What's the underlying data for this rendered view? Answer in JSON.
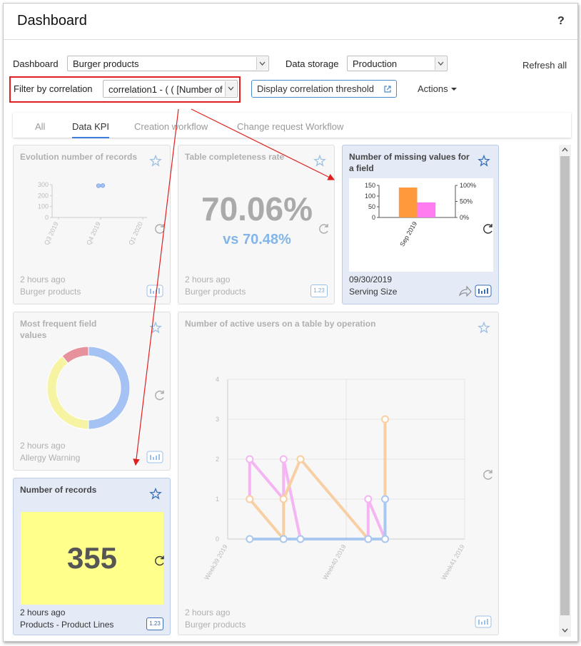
{
  "header": {
    "title": "Dashboard",
    "help": "?"
  },
  "toolbar": {
    "dashboard_label": "Dashboard",
    "dashboard_value": "Burger products",
    "storage_label": "Data storage",
    "storage_value": "Production",
    "refresh": "Refresh all",
    "filter_label": "Filter by correlation",
    "filter_value": "correlation1 - ( ( [Number of",
    "threshold_button": "Display correlation threshold",
    "actions": "Actions"
  },
  "tabs": {
    "items": [
      "All",
      "Data KPI",
      "Creation workflow",
      "Change request Workflow"
    ],
    "active": 1
  },
  "cards": [
    {
      "title": "Evolution number of records",
      "time": "2 hours ago",
      "source": "Burger products",
      "chart_data": {
        "type": "scatter",
        "x": [
          0.95,
          1.05
        ],
        "values": [
          290,
          292
        ],
        "color": "#a4c2f4",
        "xlim": [
          -0.15,
          2.1
        ],
        "xticks": [
          {
            "value": 0,
            "label": "Q3 2019"
          },
          {
            "value": 1,
            "label": "Q4 2019"
          },
          {
            "value": 2,
            "label": "Q1 2020"
          }
        ],
        "ylim": [
          0,
          300
        ],
        "yticks": [
          0,
          100,
          200,
          300
        ],
        "grid": false
      }
    },
    {
      "title": "Table completeness rate",
      "kpi": "70.06%",
      "compare": "vs 70.48%",
      "time": "2 hours ago",
      "source": "Burger products",
      "badge": "1.23"
    },
    {
      "title": "Number of missing values for a field",
      "time": "09/30/2019",
      "source": "Serving Size",
      "chart_data": {
        "type": "bar",
        "categories": [
          "Sep 2019"
        ],
        "series": [
          {
            "color": "#ff9a3c",
            "values": [
              140
            ]
          },
          {
            "color": "#ff7cf0",
            "values": [
              47
            ],
            "axis": "y2"
          }
        ],
        "ylim": [
          0,
          150
        ],
        "yticks": [
          0,
          50,
          100,
          150
        ],
        "y2lim": [
          0,
          100
        ],
        "y2ticks": [
          {
            "value": 0,
            "label": "0%"
          },
          {
            "value": 50,
            "label": "50%"
          },
          {
            "value": 100,
            "label": "100%"
          }
        ]
      }
    },
    {
      "title": "Most frequent field values",
      "time": "2 hours ago",
      "source": "Allergy Warning",
      "chart_data": {
        "type": "pie",
        "donut": true,
        "values": [
          50,
          39,
          11
        ],
        "colors": [
          "#a4c2f4",
          "#f6f3a2",
          "#e6919c"
        ]
      }
    },
    {
      "title": "Number of records",
      "kpi": "355",
      "time": "2 hours ago",
      "source": "Products - Product Lines",
      "badge": "1.23"
    },
    {
      "title": "Number of active users on a table by operation",
      "time": "2 hours ago",
      "source": "Burger products",
      "chart_data": {
        "type": "line",
        "series": [
          {
            "color": "#f4b5f2",
            "x": [
              1.3,
              1.3,
              3.3,
              3.3,
              4.3,
              8.3,
              8.3,
              9.3
            ],
            "values": [
              1,
              2,
              1,
              2,
              0,
              0,
              1,
              0
            ]
          },
          {
            "color": "#f8cfa2",
            "x": [
              1.3,
              3.3,
              3.3,
              4.3,
              8.3,
              9.3,
              9.3
            ],
            "values": [
              1,
              0,
              1,
              2,
              0,
              0,
              3
            ]
          },
          {
            "color": "#a9c8f0",
            "x": [
              1.3,
              3.3,
              4.3,
              8.3,
              9.3,
              9.3
            ],
            "values": [
              0,
              0,
              0,
              0,
              0,
              1
            ]
          }
        ],
        "xlim": [
          0,
          14
        ],
        "xticks": [
          {
            "value": 0,
            "label": "Week39 2019"
          },
          {
            "value": 7,
            "label": "Week40 2019"
          },
          {
            "value": 14,
            "label": "Week41 2019"
          }
        ],
        "ylim": [
          0,
          4
        ],
        "yticks": [
          0,
          1,
          2,
          3,
          4
        ],
        "grid": true
      }
    }
  ]
}
